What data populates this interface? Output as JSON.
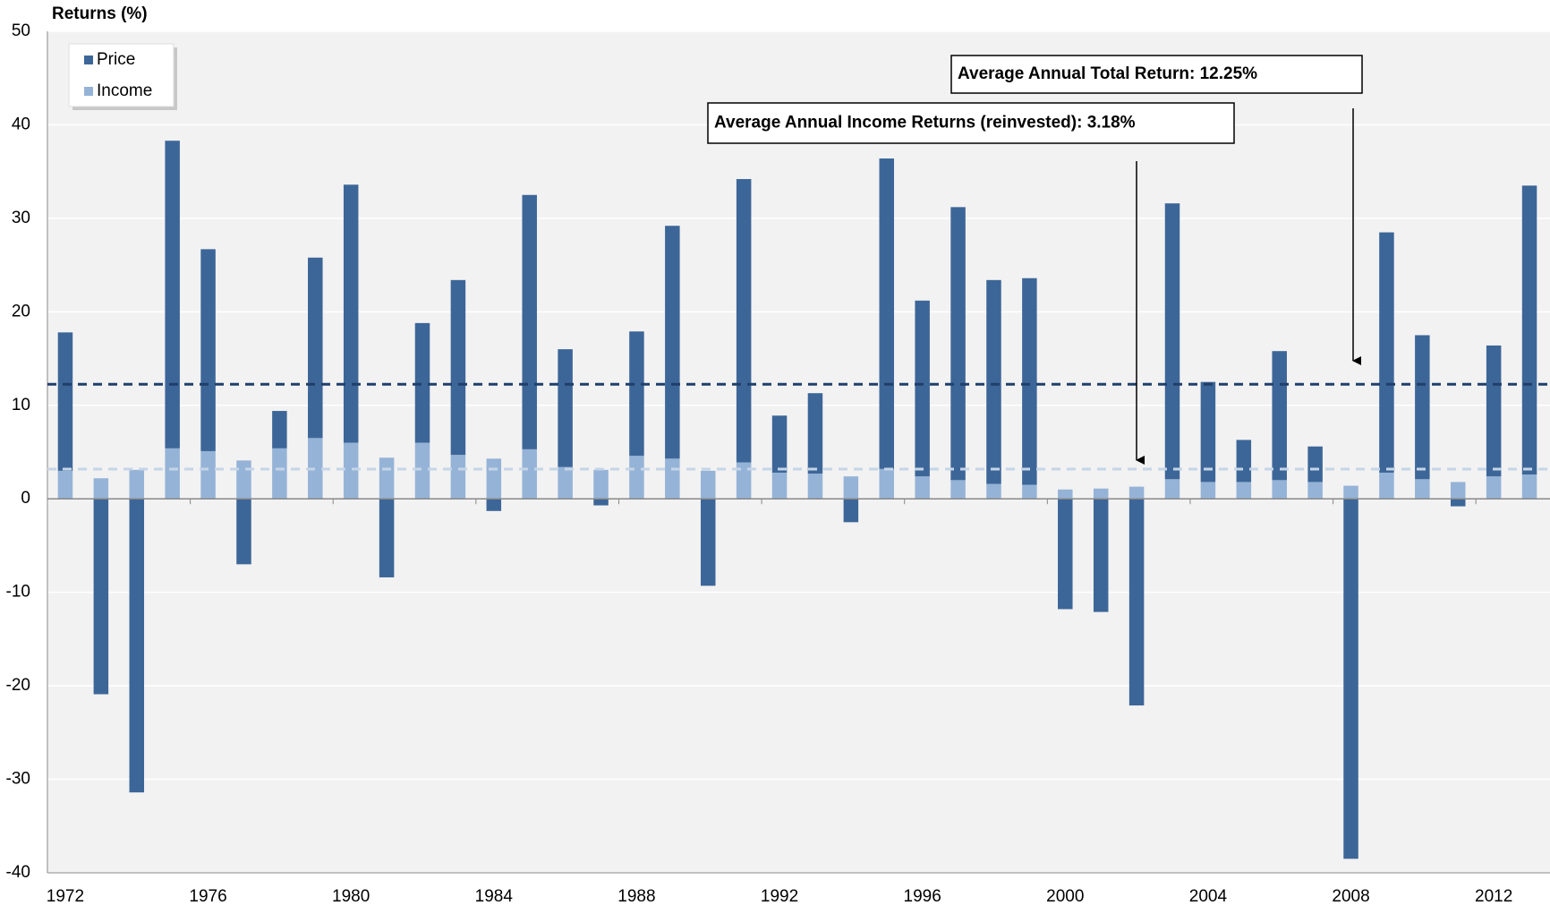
{
  "chart_data": {
    "type": "stacked_bar",
    "y_label": "Returns (%)",
    "categories": [
      "1972",
      null,
      null,
      null,
      "1976",
      null,
      null,
      null,
      "1980",
      null,
      null,
      null,
      "1984",
      null,
      null,
      null,
      "1988",
      null,
      null,
      null,
      "1992",
      null,
      null,
      null,
      "1996",
      null,
      null,
      null,
      "2000",
      null,
      null,
      null,
      "2004",
      null,
      null,
      null,
      "2008",
      null,
      null,
      null,
      "2012",
      null
    ],
    "series": [
      {
        "name": "Income",
        "color": "#95b3d7",
        "values": [
          3.0,
          2.2,
          3.1,
          5.4,
          5.1,
          4.1,
          5.4,
          6.5,
          6.0,
          4.4,
          6.0,
          4.7,
          4.3,
          5.3,
          3.4,
          3.1,
          4.6,
          4.3,
          3.0,
          3.9,
          2.8,
          2.7,
          2.4,
          3.2,
          2.4,
          2.0,
          1.6,
          1.5,
          1.0,
          1.1,
          1.3,
          2.1,
          1.8,
          1.8,
          2.0,
          1.8,
          1.4,
          2.8,
          2.1,
          1.8,
          2.4,
          2.6
        ]
      },
      {
        "name": "Price",
        "color": "#3d6698",
        "values": [
          14.8,
          -20.9,
          -31.4,
          32.9,
          21.6,
          -7.0,
          4.0,
          19.3,
          27.6,
          -8.4,
          12.8,
          18.7,
          -1.3,
          27.2,
          12.6,
          -0.7,
          13.3,
          24.9,
          -9.3,
          30.3,
          6.1,
          8.6,
          -2.5,
          33.2,
          18.8,
          29.2,
          21.8,
          22.1,
          -11.8,
          -12.1,
          -22.1,
          29.5,
          10.7,
          4.5,
          13.8,
          3.8,
          -38.5,
          25.7,
          15.4,
          -0.8,
          14.0,
          30.9
        ]
      }
    ],
    "legend_order": [
      1,
      0
    ],
    "legend": "upper left",
    "ylim": [
      -40,
      50
    ],
    "yticks": [
      -40,
      -30,
      -20,
      -10,
      0,
      10,
      20,
      30,
      40,
      50
    ],
    "grid": true,
    "reference_lines": [
      {
        "value": 12.25,
        "color": "#1f3f6b"
      },
      {
        "value": 3.18,
        "color": "#c5d5e8"
      }
    ],
    "annotations": [
      "Average Annual Total Return: 12.25%",
      "Average Annual Income Returns (reinvested): 3.18%"
    ]
  }
}
